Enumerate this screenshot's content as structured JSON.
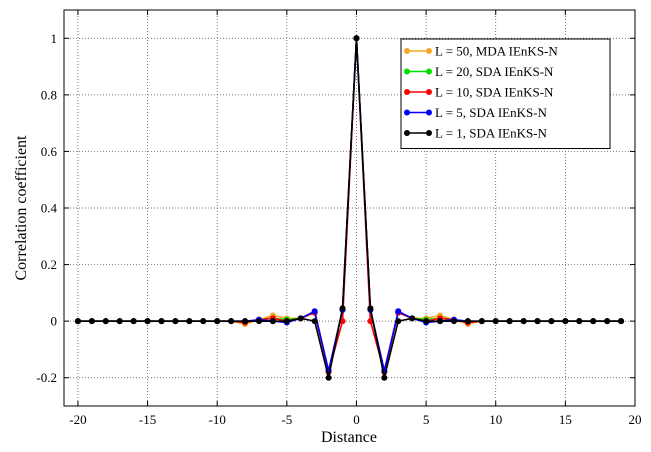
{
  "chart_data": {
    "type": "line",
    "xlabel": "Distance",
    "ylabel": "Correlation coefficient",
    "xlim": [
      -21,
      20
    ],
    "ylim": [
      -0.3,
      1.1
    ],
    "grid": true,
    "legend_position": "top-right",
    "x_ticks": [
      -20,
      -15,
      -10,
      -5,
      0,
      5,
      10,
      15,
      20
    ],
    "x_tick_labels": [
      "-20",
      "-15",
      "-10",
      "-5",
      "0",
      "5",
      "10",
      "15",
      "20"
    ],
    "y_ticks": [
      -0.2,
      0,
      0.2,
      0.4,
      0.6,
      0.8,
      1
    ],
    "y_tick_labels": [
      "-0.2",
      "0",
      "0.2",
      "0.4",
      "0.6",
      "0.8",
      "1"
    ],
    "x": [
      -20,
      -19,
      -18,
      -17,
      -16,
      -15,
      -14,
      -13,
      -12,
      -11,
      -10,
      -9,
      -8,
      -7,
      -6,
      -5,
      -4,
      -3,
      -2,
      -1,
      0,
      1,
      2,
      3,
      4,
      5,
      6,
      7,
      8,
      9,
      10,
      11,
      12,
      13,
      14,
      15,
      16,
      17,
      18,
      19
    ],
    "series": [
      {
        "name": "L = 50, MDA IEnKS-N",
        "color": "#f5a623",
        "values": [
          0,
          0,
          0,
          0,
          0,
          0,
          0,
          0,
          0,
          0,
          0,
          0,
          -0.01,
          0.005,
          0.02,
          0.01,
          0.01,
          0.035,
          -0.18,
          0.045,
          1,
          0.045,
          -0.18,
          0.035,
          0.01,
          0.01,
          0.02,
          0.005,
          -0.01,
          0,
          0,
          0,
          0,
          0,
          0,
          0,
          0,
          0,
          0,
          0
        ]
      },
      {
        "name": "L = 20, SDA IEnKS-N",
        "color": "#00e000",
        "values": [
          0,
          0,
          0,
          0,
          0,
          0,
          0,
          0,
          0,
          0,
          0,
          0,
          -0.005,
          0.005,
          0.01,
          0.005,
          0.01,
          0.03,
          -0.18,
          0.04,
          1,
          0.04,
          -0.18,
          0.03,
          0.01,
          0.005,
          0.01,
          0.005,
          -0.005,
          0,
          0,
          0,
          0,
          0,
          0,
          0,
          0,
          0,
          0,
          0
        ]
      },
      {
        "name": "L = 10, SDA IEnKS-N",
        "color": "#ff0000",
        "values": [
          0,
          0,
          0,
          0,
          0,
          0,
          0,
          0,
          0,
          0,
          0,
          0,
          -0.005,
          0.005,
          0.01,
          0,
          0.01,
          0.03,
          -0.18,
          0,
          1,
          0,
          -0.18,
          0.03,
          0.01,
          0,
          0.01,
          0.005,
          -0.005,
          0,
          0,
          0,
          0,
          0,
          0,
          0,
          0,
          0,
          0,
          0
        ]
      },
      {
        "name": "L = 5, SDA IEnKS-N",
        "color": "#0000ff",
        "values": [
          0,
          0,
          0,
          0,
          0,
          0,
          0,
          0,
          0,
          0,
          0,
          0,
          0,
          0.005,
          0,
          -0.005,
          0.01,
          0.035,
          -0.175,
          0.04,
          1,
          0.04,
          -0.175,
          0.035,
          0.01,
          -0.005,
          0,
          0.005,
          0,
          0,
          0,
          0,
          0,
          0,
          0,
          0,
          0,
          0,
          0,
          0
        ]
      },
      {
        "name": "L = 1, SDA IEnKS-N",
        "color": "#000000",
        "values": [
          0,
          0,
          0,
          0,
          0,
          0,
          0,
          0,
          0,
          0,
          0,
          0,
          0,
          0,
          0,
          0,
          0.01,
          0,
          -0.2,
          0.045,
          1,
          0.045,
          -0.2,
          0,
          0.01,
          0,
          0,
          0,
          0,
          0,
          0,
          0,
          0,
          0,
          0,
          0,
          0,
          0,
          0,
          0
        ]
      }
    ]
  }
}
